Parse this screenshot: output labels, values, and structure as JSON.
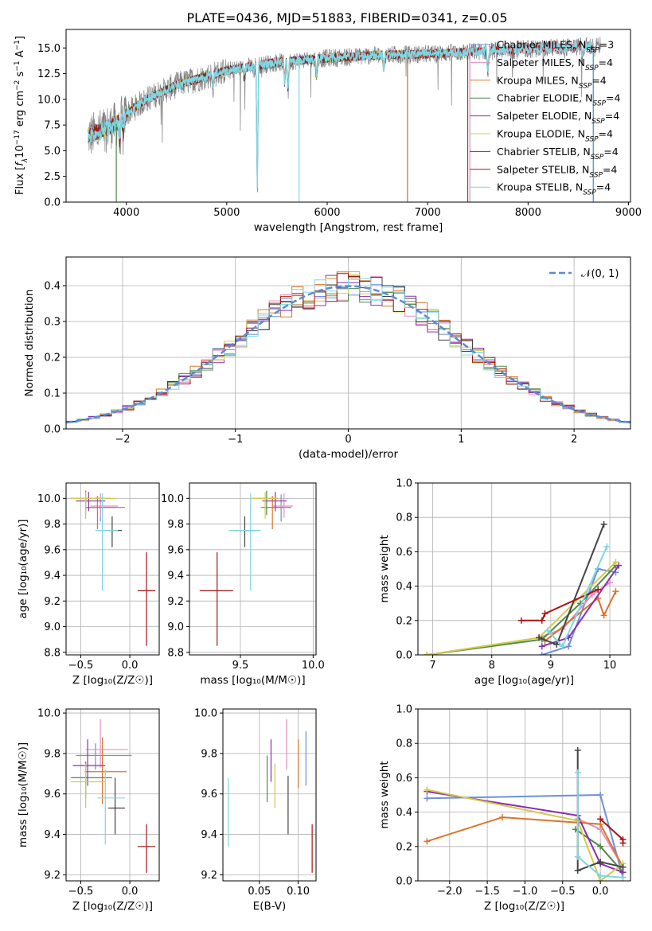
{
  "title": "PLATE=0436, MJD=51883, FIBERID=0341, z=0.05",
  "colors": {
    "series": [
      "#6b8fe0",
      "#e58fc0",
      "#d9752a",
      "#4f8a4a",
      "#8a2fb0",
      "#d4c94a",
      "#444444",
      "#a81414",
      "#7fd6e0"
    ],
    "data": "#808080",
    "normal": "#5b8bd6",
    "axis": "#000000",
    "grid": "#b0b0b0"
  },
  "chart_data": [
    {
      "id": "spectrum",
      "type": "line",
      "title": "PLATE=0436, MJD=51883, FIBERID=0341, z=0.05",
      "xlabel": "wavelength [Angstrom, rest frame]",
      "ylabel_parts": [
        "Flux [",
        "f",
        "λ",
        "10",
        "−17",
        " erg cm",
        "−2",
        " s",
        "−1",
        " A",
        "−1",
        "]"
      ],
      "xlim": [
        3400,
        9020
      ],
      "ylim": [
        0,
        16.8
      ],
      "xticks": [
        4000,
        5000,
        6000,
        7000,
        8000,
        9000
      ],
      "yticks": [
        0.0,
        2.5,
        5.0,
        7.5,
        10.0,
        12.5,
        15.0
      ],
      "ytick_labels": [
        "0.0",
        "2.5",
        "5.0",
        "7.5",
        "10.0",
        "12.5",
        "15.0"
      ],
      "grid": false,
      "legend_position": "upper-right",
      "legend": [
        {
          "name": "Chabrier MILES, ",
          "sub": "SSP",
          "count": "=3"
        },
        {
          "name": "Salpeter MILES, ",
          "sub": "SSP",
          "count": "=4"
        },
        {
          "name": "Kroupa MILES, ",
          "sub": "SSP",
          "count": "=4"
        },
        {
          "name": "Chabrier ELODIE, ",
          "sub": "SSP",
          "count": "=4"
        },
        {
          "name": "Salpeter ELODIE, ",
          "sub": "SSP",
          "count": "=4"
        },
        {
          "name": "Kroupa ELODIE, ",
          "sub": "SSP",
          "count": "=4"
        },
        {
          "name": "Chabrier STELIB, ",
          "sub": "SSP",
          "count": "=4"
        },
        {
          "name": "Salpeter STELIB, ",
          "sub": "SSP",
          "count": "=4"
        },
        {
          "name": "Kroupa STELIB, ",
          "sub": "SSP",
          "count": "=4"
        }
      ],
      "continuum": [
        [
          3650,
          6.5
        ],
        [
          3800,
          7.2
        ],
        [
          3900,
          7.6
        ],
        [
          4000,
          8.6
        ],
        [
          4200,
          10.0
        ],
        [
          4500,
          11.4
        ],
        [
          5000,
          12.8
        ],
        [
          5500,
          13.6
        ],
        [
          6000,
          14.0
        ],
        [
          6500,
          14.3
        ],
        [
          7000,
          14.4
        ],
        [
          7400,
          14.6
        ],
        [
          7800,
          14.8
        ],
        [
          8200,
          15.0
        ],
        [
          8700,
          15.2
        ]
      ],
      "data_range": [
        3620,
        8720
      ],
      "model_ranges": [
        [
          3620,
          7400
        ],
        [
          3620,
          8650
        ],
        [
          3620,
          7400
        ],
        [
          3620,
          6800
        ],
        [
          3620,
          6800
        ],
        [
          3620,
          6800
        ],
        [
          3620,
          7400
        ],
        [
          3620,
          8650
        ],
        [
          3620,
          8650
        ]
      ],
      "dips": [
        [
          3934,
          2.5
        ],
        [
          3969,
          2.0
        ],
        [
          4861,
          1.5
        ],
        [
          5175,
          1.2
        ],
        [
          5270,
          1.0
        ],
        [
          5304,
          13.5
        ],
        [
          5577,
          2.5
        ],
        [
          5610,
          3.5
        ],
        [
          5893,
          2.0
        ],
        [
          6563,
          1.8
        ],
        [
          7600,
          2.5
        ],
        [
          8542,
          1.2
        ],
        [
          8662,
          1.2
        ]
      ],
      "drops": [
        [
          3900,
          3
        ],
        [
          5720,
          8
        ],
        [
          6800,
          2
        ],
        [
          7420,
          1
        ],
        [
          8650,
          0
        ]
      ]
    },
    {
      "id": "residuals",
      "type": "histogram",
      "xlabel": "(data-model)/error",
      "ylabel": "Normed distribution",
      "xlim": [
        -2.5,
        2.5
      ],
      "ylim": [
        0,
        0.48
      ],
      "xticks": [
        -2,
        -1,
        0,
        1,
        2
      ],
      "xtick_labels": [
        "−2",
        "−1",
        "0",
        "1",
        "2"
      ],
      "yticks": [
        0.0,
        0.1,
        0.2,
        0.3,
        0.4
      ],
      "ytick_labels": [
        "0.0",
        "0.1",
        "0.2",
        "0.3",
        "0.4"
      ],
      "grid": true,
      "legend_position": "upper-right",
      "legend_label": "𝒩(0, 1)",
      "bin_width": 0.1,
      "normal_curve": {
        "mean": 0,
        "sigma": 1
      }
    },
    {
      "id": "age-vs-Z",
      "type": "scatter",
      "xlabel": "Z [log₁₀(Z/Z☉)]",
      "ylabel": "age  [log₁₀(age/yr)]",
      "xlim": [
        -0.65,
        0.3
      ],
      "ylim": [
        8.78,
        10.12
      ],
      "xticks": [
        -0.5,
        0.0
      ],
      "xtick_labels": [
        "−0.5",
        "0.0"
      ],
      "yticks": [
        8.8,
        9.0,
        9.2,
        9.4,
        9.6,
        9.8,
        10.0
      ],
      "ytick_labels": [
        "8.8",
        "9.0",
        "9.2",
        "9.4",
        "9.6",
        "9.8",
        "10.0"
      ],
      "grid": true,
      "points": [
        {
          "x": -0.3,
          "y": 9.93,
          "xlo": -0.45,
          "xhi": -0.05,
          "ylo": 9.82,
          "yhi": 10.03
        },
        {
          "x": -0.3,
          "y": 9.94,
          "xlo": -0.4,
          "xhi": -0.12,
          "ylo": 9.85,
          "yhi": 10.04
        },
        {
          "x": -0.33,
          "y": 9.93,
          "xlo": -0.45,
          "xhi": -0.15,
          "ylo": 9.76,
          "yhi": 10.02
        },
        {
          "x": -0.45,
          "y": 10.0,
          "xlo": -0.6,
          "xhi": -0.2,
          "ylo": 9.87,
          "yhi": 10.06
        },
        {
          "x": -0.42,
          "y": 9.98,
          "xlo": -0.55,
          "xhi": -0.25,
          "ylo": 9.9,
          "yhi": 10.05
        },
        {
          "x": -0.45,
          "y": 10.0,
          "xlo": -0.6,
          "xhi": -0.15,
          "ylo": 9.84,
          "yhi": 10.05
        },
        {
          "x": -0.18,
          "y": 9.75,
          "xlo": -0.25,
          "xhi": -0.08,
          "ylo": 9.62,
          "yhi": 9.86
        },
        {
          "x": 0.17,
          "y": 9.28,
          "xlo": 0.08,
          "xhi": 0.26,
          "ylo": 8.85,
          "yhi": 9.58
        },
        {
          "x": -0.28,
          "y": 9.75,
          "xlo": -0.35,
          "xhi": -0.12,
          "ylo": 9.28,
          "yhi": 10.04
        }
      ]
    },
    {
      "id": "age-vs-mass",
      "type": "scatter",
      "xlabel": "mass [log₁₀(M/M☉)]",
      "ylabel": "",
      "xlim": [
        9.15,
        10.02
      ],
      "ylim": [
        8.78,
        10.12
      ],
      "xticks": [
        9.5,
        10.0
      ],
      "xtick_labels": [
        "9.5",
        "10.0"
      ],
      "yticks": [
        8.8,
        9.0,
        9.2,
        9.4,
        9.6,
        9.8,
        10.0
      ],
      "ytick_labels": [
        "8.8",
        "9.0",
        "9.2",
        "9.4",
        "9.6",
        "9.8",
        "10.0"
      ],
      "grid": true,
      "points": [
        {
          "x": 9.78,
          "y": 9.93,
          "xlo": 9.72,
          "xhi": 9.85,
          "ylo": 9.82,
          "yhi": 10.03
        },
        {
          "x": 9.8,
          "y": 9.94,
          "xlo": 9.72,
          "xhi": 9.86,
          "ylo": 9.85,
          "yhi": 10.04
        },
        {
          "x": 9.72,
          "y": 9.93,
          "xlo": 9.64,
          "xhi": 9.8,
          "ylo": 9.76,
          "yhi": 10.02
        },
        {
          "x": 9.68,
          "y": 10.0,
          "xlo": 9.58,
          "xhi": 9.76,
          "ylo": 9.87,
          "yhi": 10.06
        },
        {
          "x": 9.74,
          "y": 9.98,
          "xlo": 9.65,
          "xhi": 9.82,
          "ylo": 9.9,
          "yhi": 10.05
        },
        {
          "x": 9.67,
          "y": 10.0,
          "xlo": 9.58,
          "xhi": 9.76,
          "ylo": 9.84,
          "yhi": 10.05
        },
        {
          "x": 9.53,
          "y": 9.75,
          "xlo": 9.45,
          "xhi": 9.62,
          "ylo": 9.62,
          "yhi": 9.86
        },
        {
          "x": 9.34,
          "y": 9.28,
          "xlo": 9.22,
          "xhi": 9.45,
          "ylo": 8.85,
          "yhi": 9.58
        },
        {
          "x": 9.57,
          "y": 9.75,
          "xlo": 9.42,
          "xhi": 9.64,
          "ylo": 9.28,
          "yhi": 10.04
        }
      ]
    },
    {
      "id": "weight-vs-age",
      "type": "line",
      "xlabel": "age  [log₁₀(age/yr)]",
      "ylabel": "mass weight",
      "xlim": [
        6.75,
        10.35
      ],
      "ylim": [
        0,
        1.0
      ],
      "xticks": [
        7,
        8,
        9,
        10
      ],
      "xtick_labels": [
        "7",
        "8",
        "9",
        "10"
      ],
      "yticks": [
        0.0,
        0.2,
        0.4,
        0.6,
        0.8,
        1.0
      ],
      "ytick_labels": [
        "0.0",
        "0.2",
        "0.4",
        "0.6",
        "0.8",
        "1.0"
      ],
      "grid": true,
      "series": [
        {
          "points": [
            [
              8.85,
              0.0
            ],
            [
              9.3,
              0.05
            ],
            [
              9.8,
              0.5
            ],
            [
              10.1,
              0.48
            ]
          ]
        },
        {
          "points": [
            [
              8.8,
              0.1
            ],
            [
              9.2,
              0.15
            ],
            [
              9.7,
              0.35
            ],
            [
              10.0,
              0.42
            ]
          ]
        },
        {
          "points": [
            [
              8.9,
              0.08
            ],
            [
              9.8,
              0.33
            ],
            [
              9.9,
              0.23
            ],
            [
              10.1,
              0.37
            ]
          ]
        },
        {
          "points": [
            [
              6.9,
              0.0
            ],
            [
              8.85,
              0.09
            ],
            [
              9.5,
              0.3
            ],
            [
              10.1,
              0.52
            ]
          ]
        },
        {
          "points": [
            [
              8.85,
              0.05
            ],
            [
              9.3,
              0.1
            ],
            [
              10.15,
              0.52
            ]
          ]
        },
        {
          "points": [
            [
              6.9,
              0.0
            ],
            [
              8.8,
              0.1
            ],
            [
              10.1,
              0.54
            ]
          ]
        },
        {
          "points": [
            [
              8.8,
              0.1
            ],
            [
              9.1,
              0.06
            ],
            [
              9.9,
              0.76
            ]
          ]
        },
        {
          "points": [
            [
              8.5,
              0.2
            ],
            [
              8.85,
              0.2
            ],
            [
              8.9,
              0.24
            ],
            [
              9.8,
              0.38
            ]
          ]
        },
        {
          "points": [
            [
              8.95,
              0.14
            ],
            [
              9.2,
              0.05
            ],
            [
              9.95,
              0.63
            ]
          ]
        }
      ]
    },
    {
      "id": "mass-vs-Z",
      "type": "scatter",
      "xlabel": "Z [log₁₀(Z/Z☉)]",
      "ylabel": "mass [log₁₀(M/M☉)]",
      "xlim": [
        -0.65,
        0.3
      ],
      "ylim": [
        9.17,
        10.02
      ],
      "xticks": [
        -0.5,
        0.0
      ],
      "xtick_labels": [
        "−0.5",
        "0.0"
      ],
      "yticks": [
        9.2,
        9.4,
        9.6,
        9.8,
        10.0
      ],
      "ytick_labels": [
        "9.2",
        "9.4",
        "9.6",
        "9.8",
        "10.0"
      ],
      "grid": true,
      "points": [
        {
          "x": -0.35,
          "y": 9.79,
          "xlo": -0.55,
          "xhi": 0.02,
          "ylo": 9.72,
          "yhi": 9.85
        },
        {
          "x": -0.3,
          "y": 9.82,
          "xlo": -0.45,
          "xhi": -0.02,
          "ylo": 9.73,
          "yhi": 9.97
        },
        {
          "x": -0.28,
          "y": 9.71,
          "xlo": -0.46,
          "xhi": -0.03,
          "ylo": 9.55,
          "yhi": 9.88
        },
        {
          "x": -0.45,
          "y": 9.68,
          "xlo": -0.6,
          "xhi": -0.18,
          "ylo": 9.58,
          "yhi": 9.76
        },
        {
          "x": -0.43,
          "y": 9.74,
          "xlo": -0.58,
          "xhi": -0.25,
          "ylo": 9.64,
          "yhi": 9.87
        },
        {
          "x": -0.45,
          "y": 9.66,
          "xlo": -0.6,
          "xhi": -0.25,
          "ylo": 9.53,
          "yhi": 9.75
        },
        {
          "x": -0.15,
          "y": 9.53,
          "xlo": -0.22,
          "xhi": -0.05,
          "ylo": 9.4,
          "yhi": 9.68
        },
        {
          "x": 0.17,
          "y": 9.34,
          "xlo": 0.08,
          "xhi": 0.26,
          "ylo": 9.21,
          "yhi": 9.45
        },
        {
          "x": -0.25,
          "y": 9.58,
          "xlo": -0.33,
          "xhi": -0.05,
          "ylo": 9.35,
          "yhi": 9.72
        }
      ]
    },
    {
      "id": "mass-vs-ebv",
      "type": "scatter",
      "xlabel": "E(B-V)",
      "ylabel": "",
      "xlim": [
        0.003,
        0.123
      ],
      "ylim": [
        9.17,
        10.02
      ],
      "xticks": [
        0.05,
        0.1
      ],
      "xtick_labels": [
        "0.05",
        "0.10"
      ],
      "yticks": [
        9.2,
        9.4,
        9.6,
        9.8,
        10.0
      ],
      "ytick_labels": [
        "9.2",
        "9.4",
        "9.6",
        "9.8",
        "10.0"
      ],
      "grid": true,
      "points": [
        {
          "x": 0.11,
          "ylo": 9.64,
          "yhi": 9.91
        },
        {
          "x": 0.085,
          "ylo": 9.72,
          "yhi": 9.97
        },
        {
          "x": 0.1,
          "ylo": 9.63,
          "yhi": 9.87
        },
        {
          "x": 0.06,
          "ylo": 9.56,
          "yhi": 9.79
        },
        {
          "x": 0.065,
          "ylo": 9.66,
          "yhi": 9.87
        },
        {
          "x": 0.07,
          "ylo": 9.53,
          "yhi": 9.75
        },
        {
          "x": 0.087,
          "ylo": 9.4,
          "yhi": 9.69
        },
        {
          "x": 0.118,
          "ylo": 9.21,
          "yhi": 9.45
        },
        {
          "x": 0.01,
          "ylo": 9.34,
          "yhi": 9.68
        }
      ]
    },
    {
      "id": "weight-vs-Z",
      "type": "line",
      "xlabel": "Z [log₁₀(Z/Z☉)]",
      "ylabel": "mass weight",
      "xlim": [
        -2.42,
        0.4
      ],
      "ylim": [
        0,
        1.0
      ],
      "xticks": [
        -2.0,
        -1.5,
        -1.0,
        -0.5,
        0.0
      ],
      "xtick_labels": [
        "−2.0",
        "−1.5",
        "−1.0",
        "−0.5",
        "0.0"
      ],
      "yticks": [
        0.0,
        0.2,
        0.4,
        0.6,
        0.8,
        1.0
      ],
      "ytick_labels": [
        "0.0",
        "0.2",
        "0.4",
        "0.6",
        "0.8",
        "1.0"
      ],
      "grid": true,
      "series": [
        {
          "points": [
            [
              -2.3,
              0.48
            ],
            [
              0.0,
              0.5
            ],
            [
              0.3,
              0.02
            ]
          ]
        },
        {
          "points": [
            [
              -0.3,
              0.36
            ],
            [
              0.0,
              0.3
            ],
            [
              0.3,
              0.08
            ]
          ]
        },
        {
          "points": [
            [
              -2.3,
              0.23
            ],
            [
              -1.3,
              0.37
            ],
            [
              0.0,
              0.33
            ],
            [
              0.3,
              0.08
            ]
          ]
        },
        {
          "points": [
            [
              -0.33,
              0.3
            ],
            [
              0.0,
              0.2
            ],
            [
              0.3,
              0.05
            ]
          ]
        },
        {
          "points": [
            [
              -2.3,
              0.52
            ],
            [
              -0.3,
              0.38
            ],
            [
              0.0,
              0.1
            ],
            [
              0.3,
              0.05
            ]
          ]
        },
        {
          "points": [
            [
              -2.3,
              0.53
            ],
            [
              -0.3,
              0.35
            ],
            [
              0.0,
              0.0
            ],
            [
              0.3,
              0.1
            ]
          ]
        },
        {
          "points": [
            [
              -0.3,
              0.76
            ],
            [
              -0.3,
              0.06
            ],
            [
              0.0,
              0.11
            ],
            [
              0.3,
              0.08
            ]
          ]
        },
        {
          "points": [
            [
              0.0,
              0.36
            ],
            [
              0.3,
              0.24
            ],
            [
              0.3,
              0.22
            ]
          ]
        },
        {
          "points": [
            [
              -0.3,
              0.63
            ],
            [
              -0.3,
              0.14
            ],
            [
              0.0,
              0.03
            ],
            [
              0.3,
              0.02
            ]
          ]
        }
      ]
    }
  ]
}
